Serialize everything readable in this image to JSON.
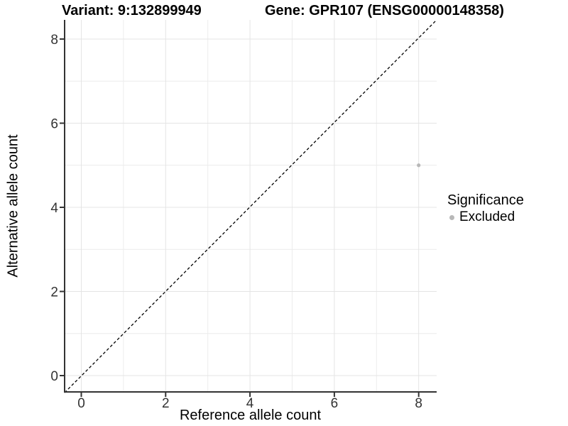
{
  "chart_data": {
    "type": "scatter",
    "title_left": "Variant: 9:132899949",
    "title_right": "Gene: GPR107 (ENSG00000148358)",
    "xlabel": "Reference allele count",
    "ylabel": "Alternative allele count",
    "x_ticks": [
      0,
      2,
      4,
      6,
      8
    ],
    "y_ticks": [
      0,
      2,
      4,
      6,
      8
    ],
    "x_minor_ticks": [
      1,
      3,
      5,
      7
    ],
    "y_minor_ticks": [
      1,
      3,
      5,
      7
    ],
    "xlim": [
      -0.41,
      8.42
    ],
    "ylim": [
      -0.41,
      8.45
    ],
    "grid": "major-and-minor",
    "legend_position": "right",
    "reference_line": {
      "type": "identity",
      "equation": "y = x",
      "style": "dashed",
      "color": "#000000"
    },
    "series": [
      {
        "name": "Excluded",
        "color": "#b8b8b8",
        "marker": "circle",
        "points": [
          [
            8,
            5
          ]
        ]
      }
    ],
    "legend": {
      "title": "Significance",
      "entries": [
        {
          "label": "Excluded",
          "color": "#b8b8b8",
          "marker": "circle"
        }
      ]
    },
    "colors": {
      "grid_major": "#e4e4e4",
      "grid_minor": "#ececec",
      "axis_line": "#333333",
      "tick_text": "#333333",
      "title_text": "#000000"
    }
  }
}
